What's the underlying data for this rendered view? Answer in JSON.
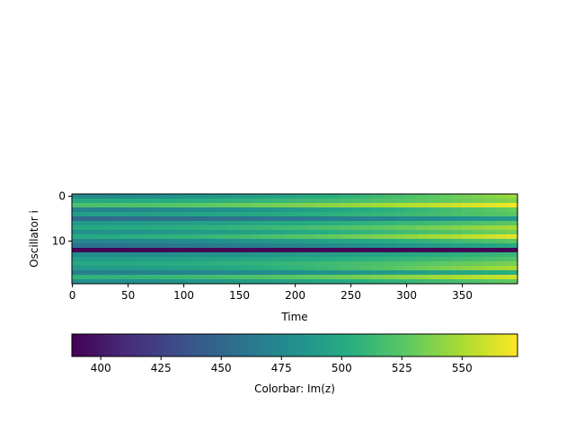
{
  "chart_data": {
    "type": "heatmap",
    "title": "",
    "xlabel": "Time",
    "ylabel": "Oscillator i",
    "x_range": [
      0,
      399
    ],
    "y_range": [
      0,
      19
    ],
    "x_ticks": [
      "0",
      "50",
      "100",
      "150",
      "200",
      "250",
      "300",
      "350"
    ],
    "y_ticks": [
      "0",
      "10"
    ],
    "colormap": "viridis",
    "colorbar": {
      "label": "Colorbar: Im(z)",
      "orientation": "horizontal",
      "range": [
        388,
        573
      ],
      "ticks": [
        "400",
        "425",
        "450",
        "475",
        "500",
        "525",
        "550"
      ]
    },
    "rows": [
      {
        "oscillator": 0,
        "start": 475,
        "end": 545
      },
      {
        "oscillator": 1,
        "start": 500,
        "end": 538
      },
      {
        "oscillator": 2,
        "start": 520,
        "end": 570
      },
      {
        "oscillator": 3,
        "start": 470,
        "end": 530
      },
      {
        "oscillator": 4,
        "start": 492,
        "end": 525
      },
      {
        "oscillator": 5,
        "start": 452,
        "end": 488
      },
      {
        "oscillator": 6,
        "start": 488,
        "end": 525
      },
      {
        "oscillator": 7,
        "start": 500,
        "end": 548
      },
      {
        "oscillator": 8,
        "start": 482,
        "end": 535
      },
      {
        "oscillator": 9,
        "start": 502,
        "end": 565
      },
      {
        "oscillator": 10,
        "start": 472,
        "end": 525
      },
      {
        "oscillator": 11,
        "start": 458,
        "end": 500
      },
      {
        "oscillator": 12,
        "start": 388,
        "end": 388
      },
      {
        "oscillator": 13,
        "start": 478,
        "end": 512
      },
      {
        "oscillator": 14,
        "start": 490,
        "end": 522
      },
      {
        "oscillator": 15,
        "start": 500,
        "end": 535
      },
      {
        "oscillator": 16,
        "start": 488,
        "end": 550
      },
      {
        "oscillator": 17,
        "start": 468,
        "end": 505
      },
      {
        "oscillator": 18,
        "start": 508,
        "end": 560
      },
      {
        "oscillator": 19,
        "start": 480,
        "end": 528
      }
    ]
  }
}
